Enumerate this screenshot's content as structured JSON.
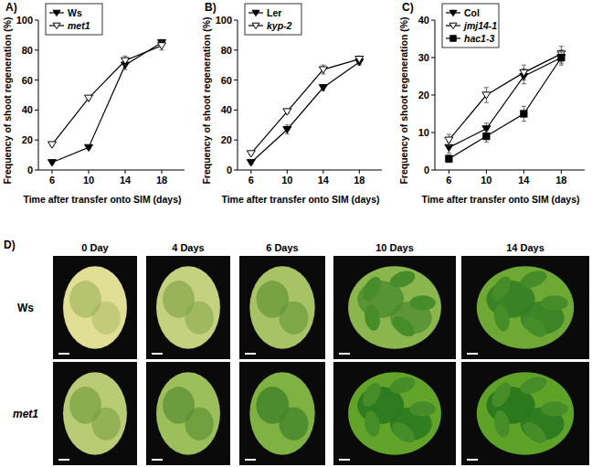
{
  "chart_data": [
    {
      "type": "line",
      "title": "A)",
      "x_label": "Time after transfer onto SIM (days)",
      "y_label": "Frequency of shoot regeneration (%)",
      "x": [
        6,
        10,
        14,
        18
      ],
      "xlim": [
        4.5,
        20.5
      ],
      "xticks": [
        6,
        10,
        14,
        18
      ],
      "ylim": [
        0,
        100
      ],
      "yticks": [
        0,
        20,
        40,
        60,
        80,
        100
      ],
      "legend": "upper left",
      "series": [
        {
          "name": "Ws",
          "color": "#000000",
          "marker": "triangle-down",
          "values": [
            5,
            15,
            70,
            85
          ],
          "errors": [
            1,
            1,
            3,
            2
          ]
        },
        {
          "name": "met1",
          "color": "#000000",
          "marker": "triangle-down-open",
          "values": [
            17,
            48,
            73,
            83
          ],
          "errors": [
            1,
            1,
            3,
            3
          ]
        }
      ]
    },
    {
      "type": "line",
      "title": "B)",
      "x_label": "Time after transfer onto SIM (days)",
      "y_label": "Frequency of shoot regeneration (%)",
      "x": [
        6,
        10,
        14,
        18
      ],
      "xlim": [
        4.5,
        20.5
      ],
      "xticks": [
        6,
        10,
        14,
        18
      ],
      "ylim": [
        0,
        100
      ],
      "yticks": [
        0,
        20,
        40,
        60,
        80,
        100
      ],
      "legend": "upper left",
      "series": [
        {
          "name": "Ler",
          "color": "#000000",
          "marker": "triangle-down",
          "values": [
            5,
            27,
            55,
            72
          ],
          "errors": [
            1,
            3,
            2,
            2
          ]
        },
        {
          "name": "kyp-2",
          "color": "#000000",
          "marker": "triangle-down-open",
          "values": [
            11,
            39,
            67,
            74
          ],
          "errors": [
            1,
            1,
            3,
            2
          ]
        }
      ]
    },
    {
      "type": "line",
      "title": "C)",
      "x_label": "Time after transfer onto SIM (days)",
      "y_label": "Frequency of shoot regeneration (%)",
      "x": [
        6,
        10,
        14,
        18
      ],
      "xlim": [
        4.5,
        20.5
      ],
      "xticks": [
        6,
        10,
        14,
        18
      ],
      "ylim": [
        0,
        40
      ],
      "yticks": [
        0,
        10,
        20,
        30,
        40
      ],
      "legend": "upper left",
      "series": [
        {
          "name": "Col",
          "color": "#000000",
          "marker": "triangle-down",
          "values": [
            6,
            11,
            25,
            30
          ],
          "errors": [
            1.5,
            1.5,
            2,
            2
          ]
        },
        {
          "name": "jmj14-1",
          "color": "#000000",
          "marker": "triangle-down-open",
          "values": [
            8,
            20,
            26,
            31
          ],
          "errors": [
            1.5,
            2,
            2,
            2
          ]
        },
        {
          "name": "hac1-3",
          "color": "#000000",
          "marker": "square",
          "values": [
            3,
            9,
            15,
            30
          ],
          "errors": [
            1,
            1.5,
            2,
            1.5
          ]
        }
      ]
    }
  ],
  "panel_d": {
    "title": "D)",
    "columns": [
      "0 Day",
      "4 Days",
      "6 Days",
      "10 Days",
      "14 Days"
    ],
    "rows": [
      "Ws",
      "met1"
    ]
  }
}
